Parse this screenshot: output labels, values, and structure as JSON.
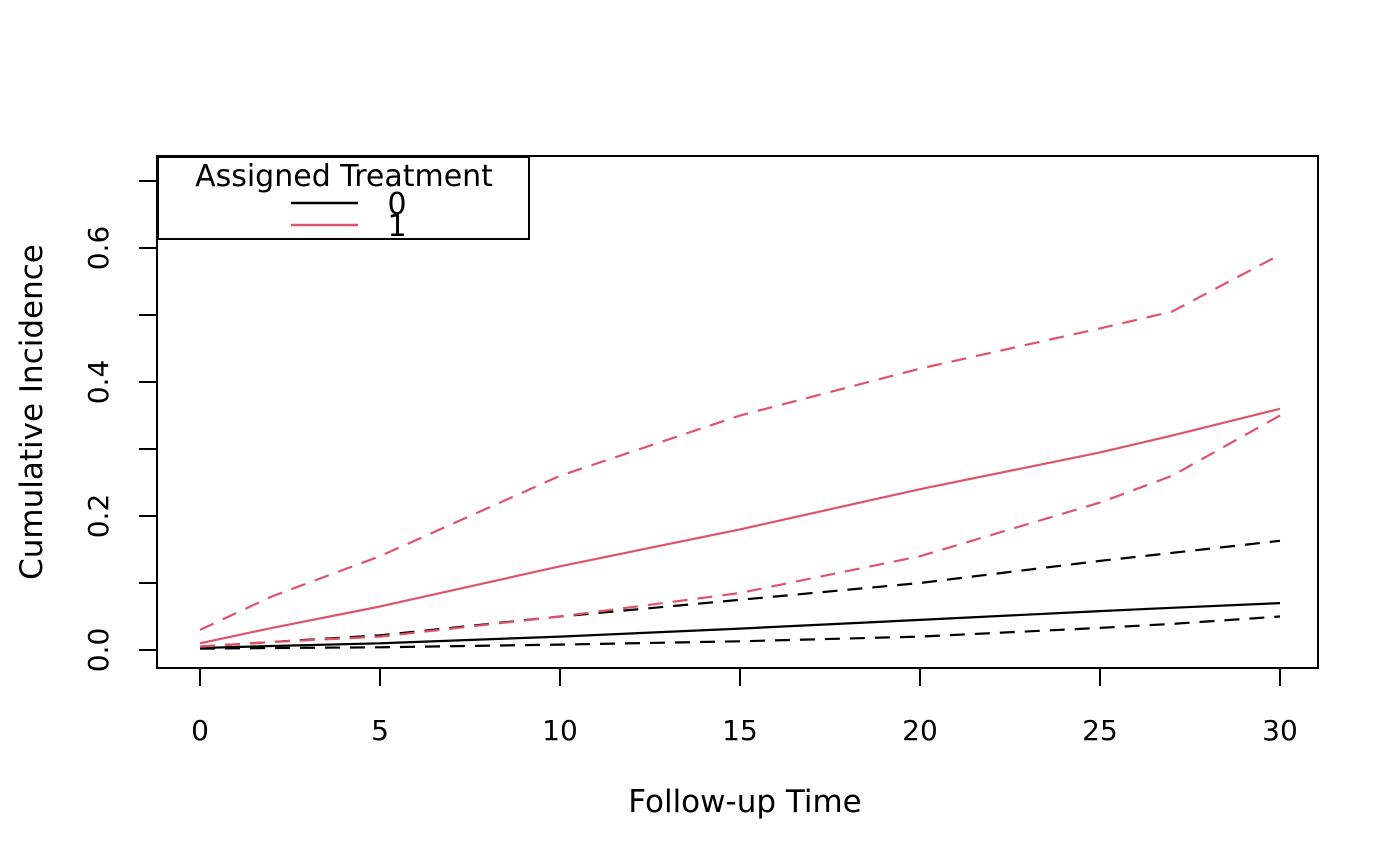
{
  "figure": {
    "background": "#ffffff",
    "foreground": "#000000"
  },
  "chart_data": {
    "type": "line",
    "title": "",
    "xlabel": "Follow-up Time",
    "ylabel": "Cumulative Incidence",
    "xlim": [
      0,
      30
    ],
    "ylim": [
      0,
      0.7
    ],
    "grid": false,
    "x_tick_values": [
      0,
      5,
      10,
      15,
      20,
      25,
      30
    ],
    "x_tick_labels": [
      "0",
      "5",
      "10",
      "15",
      "20",
      "25",
      "30"
    ],
    "y_tick_values": [
      0,
      0.1,
      0.2,
      0.3,
      0.4,
      0.5,
      0.6,
      0.7
    ],
    "y_labeled_tick_values": [
      0,
      0.2,
      0.4,
      0.6
    ],
    "y_tick_labels": [
      "0.0",
      "0.2",
      "0.4",
      "0.6"
    ],
    "legend": {
      "title": "Assigned Treatment",
      "position": "topleft",
      "entries": [
        {
          "label": "0",
          "color": "#000000",
          "line_style": "solid"
        },
        {
          "label": "1",
          "color": "#DF536B",
          "line_style": "solid"
        }
      ]
    },
    "x": [
      0,
      2,
      5,
      10,
      15,
      20,
      25,
      27,
      30
    ],
    "series": [
      {
        "name": "treatment-0-estimate",
        "group": "0",
        "role": "estimate",
        "color": "#000000",
        "line_style": "solid",
        "values": [
          0.003,
          0.006,
          0.01,
          0.02,
          0.032,
          0.045,
          0.058,
          0.063,
          0.07
        ]
      },
      {
        "name": "treatment-0-ci-upper",
        "group": "0",
        "role": "ci-upper",
        "color": "#000000",
        "line_style": "dashed",
        "values": [
          0.005,
          0.012,
          0.022,
          0.05,
          0.075,
          0.1,
          0.133,
          0.145,
          0.163
        ]
      },
      {
        "name": "treatment-0-ci-lower",
        "group": "0",
        "role": "ci-lower",
        "color": "#000000",
        "line_style": "dashed",
        "values": [
          0.002,
          0.003,
          0.004,
          0.008,
          0.013,
          0.02,
          0.033,
          0.039,
          0.05
        ]
      },
      {
        "name": "treatment-1-estimate",
        "group": "1",
        "role": "estimate",
        "color": "#DF536B",
        "line_style": "solid",
        "values": [
          0.01,
          0.033,
          0.065,
          0.125,
          0.18,
          0.24,
          0.295,
          0.32,
          0.36
        ]
      },
      {
        "name": "treatment-1-ci-upper",
        "group": "1",
        "role": "ci-upper",
        "color": "#DF536B",
        "line_style": "dashed",
        "values": [
          0.03,
          0.08,
          0.14,
          0.26,
          0.35,
          0.42,
          0.48,
          0.505,
          0.59
        ]
      },
      {
        "name": "treatment-1-ci-lower",
        "group": "1",
        "role": "ci-lower",
        "color": "#DF536B",
        "line_style": "dashed",
        "values": [
          0.005,
          0.012,
          0.02,
          0.05,
          0.085,
          0.14,
          0.22,
          0.26,
          0.35
        ]
      }
    ]
  }
}
